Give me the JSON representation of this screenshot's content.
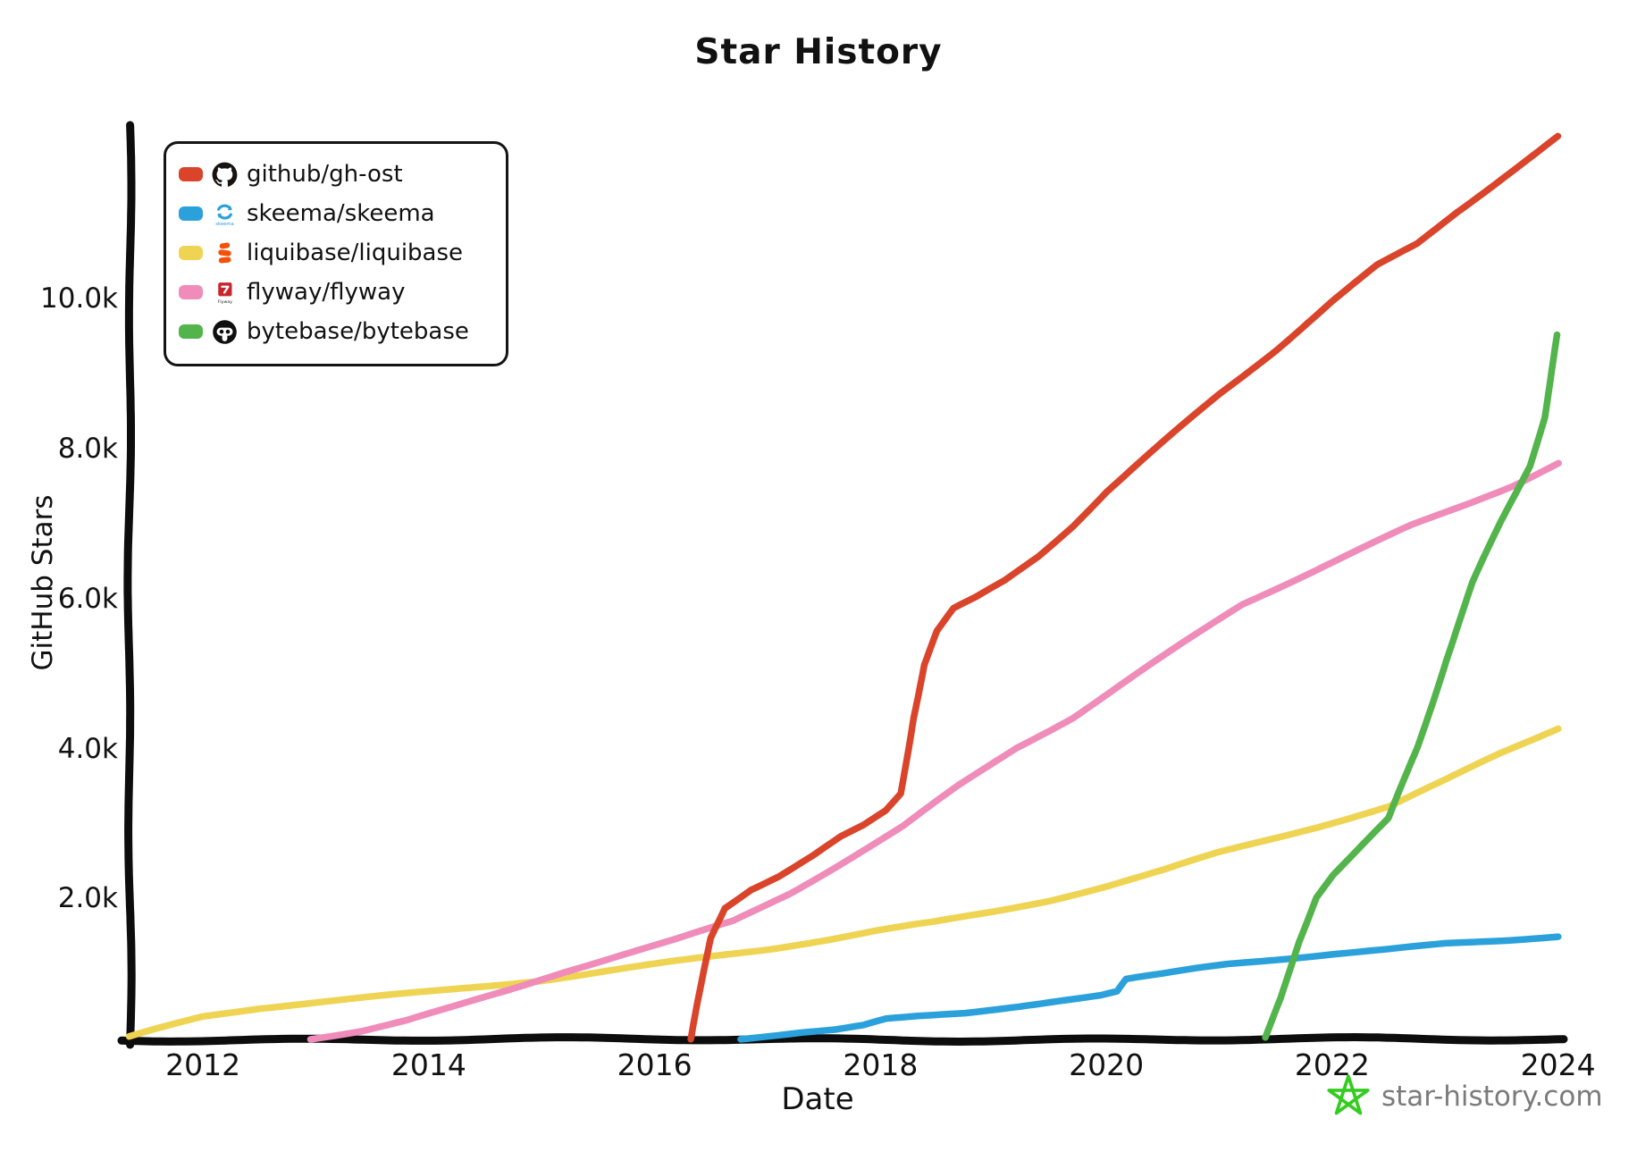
{
  "footer": {
    "site": "star-history.com",
    "star_color": "#33cc1f"
  },
  "chart_data": {
    "type": "line",
    "title": "Star History",
    "xlabel": "Date",
    "ylabel": "GitHub Stars",
    "x_unit": "year",
    "y_unit": "stars",
    "xlim": [
      2011.35,
      2024.05
    ],
    "ylim": [
      0,
      12200
    ],
    "grid": false,
    "legend_position": "top-left",
    "axis_color": "#0d0d0d",
    "xticks": [
      {
        "v": 2012,
        "label": "2012"
      },
      {
        "v": 2014,
        "label": "2014"
      },
      {
        "v": 2016,
        "label": "2016"
      },
      {
        "v": 2018,
        "label": "2018"
      },
      {
        "v": 2020,
        "label": "2020"
      },
      {
        "v": 2022,
        "label": "2022"
      },
      {
        "v": 2024,
        "label": "2024"
      }
    ],
    "yticks": [
      {
        "v": 2000,
        "label": "2.0k"
      },
      {
        "v": 4000,
        "label": "4.0k"
      },
      {
        "v": 6000,
        "label": "6.0k"
      },
      {
        "v": 8000,
        "label": "8.0k"
      },
      {
        "v": 10000,
        "label": "10.0k"
      }
    ],
    "series": [
      {
        "id": "gh-ost",
        "name": "github/gh-ost",
        "color": "#d9442b",
        "icon": "github-icon",
        "points": [
          [
            2016.33,
            0
          ],
          [
            2016.42,
            700
          ],
          [
            2016.5,
            1350
          ],
          [
            2016.62,
            1750
          ],
          [
            2016.85,
            2000
          ],
          [
            2017.1,
            2180
          ],
          [
            2017.4,
            2450
          ],
          [
            2017.65,
            2700
          ],
          [
            2017.85,
            2850
          ],
          [
            2018.05,
            3050
          ],
          [
            2018.18,
            3280
          ],
          [
            2018.28,
            4300
          ],
          [
            2018.38,
            5000
          ],
          [
            2018.5,
            5450
          ],
          [
            2018.65,
            5750
          ],
          [
            2018.85,
            5900
          ],
          [
            2019.1,
            6120
          ],
          [
            2019.4,
            6450
          ],
          [
            2019.7,
            6850
          ],
          [
            2020.0,
            7300
          ],
          [
            2020.5,
            7950
          ],
          [
            2021.0,
            8600
          ],
          [
            2021.5,
            9200
          ],
          [
            2022.0,
            9850
          ],
          [
            2022.4,
            10330
          ],
          [
            2022.75,
            10620
          ],
          [
            2023.1,
            11050
          ],
          [
            2023.5,
            11500
          ],
          [
            2024.0,
            12050
          ]
        ]
      },
      {
        "id": "skeema",
        "name": "skeema/skeema",
        "color": "#2ba1db",
        "icon": "skeema-icon",
        "points": [
          [
            2016.76,
            20
          ],
          [
            2017.0,
            60
          ],
          [
            2017.3,
            110
          ],
          [
            2017.6,
            140
          ],
          [
            2017.85,
            190
          ],
          [
            2018.05,
            270
          ],
          [
            2018.4,
            310
          ],
          [
            2018.75,
            350
          ],
          [
            2019.1,
            420
          ],
          [
            2019.5,
            500
          ],
          [
            2019.95,
            580
          ],
          [
            2020.1,
            630
          ],
          [
            2020.18,
            790
          ],
          [
            2020.5,
            860
          ],
          [
            2020.8,
            940
          ],
          [
            2021.1,
            1010
          ],
          [
            2021.5,
            1070
          ],
          [
            2022.0,
            1140
          ],
          [
            2022.5,
            1200
          ],
          [
            2023.0,
            1280
          ],
          [
            2023.5,
            1330
          ],
          [
            2024.0,
            1390
          ]
        ]
      },
      {
        "id": "liquibase",
        "name": "liquibase/liquibase",
        "color": "#efd453",
        "icon": "liquibase-icon",
        "points": [
          [
            2011.35,
            20
          ],
          [
            2011.6,
            130
          ],
          [
            2012.0,
            300
          ],
          [
            2012.5,
            420
          ],
          [
            2013.0,
            500
          ],
          [
            2013.5,
            570
          ],
          [
            2014.0,
            640
          ],
          [
            2014.5,
            720
          ],
          [
            2015.0,
            800
          ],
          [
            2015.5,
            900
          ],
          [
            2016.0,
            1000
          ],
          [
            2016.5,
            1100
          ],
          [
            2017.0,
            1200
          ],
          [
            2017.5,
            1320
          ],
          [
            2018.0,
            1450
          ],
          [
            2018.5,
            1560
          ],
          [
            2019.0,
            1700
          ],
          [
            2019.5,
            1860
          ],
          [
            2020.0,
            2050
          ],
          [
            2020.5,
            2260
          ],
          [
            2021.0,
            2500
          ],
          [
            2021.5,
            2700
          ],
          [
            2022.0,
            2900
          ],
          [
            2022.5,
            3110
          ],
          [
            2023.0,
            3450
          ],
          [
            2023.5,
            3820
          ],
          [
            2024.0,
            4150
          ]
        ]
      },
      {
        "id": "flyway",
        "name": "flyway/flyway",
        "color": "#ef8cba",
        "icon": "flyway-icon",
        "points": [
          [
            2012.95,
            20
          ],
          [
            2013.4,
            120
          ],
          [
            2013.8,
            250
          ],
          [
            2014.2,
            420
          ],
          [
            2014.7,
            650
          ],
          [
            2015.2,
            900
          ],
          [
            2015.7,
            1120
          ],
          [
            2016.2,
            1330
          ],
          [
            2016.7,
            1570
          ],
          [
            2017.2,
            1950
          ],
          [
            2017.7,
            2400
          ],
          [
            2018.2,
            2850
          ],
          [
            2018.7,
            3400
          ],
          [
            2019.2,
            3900
          ],
          [
            2019.7,
            4300
          ],
          [
            2020.2,
            4800
          ],
          [
            2020.7,
            5300
          ],
          [
            2021.2,
            5800
          ],
          [
            2021.7,
            6150
          ],
          [
            2022.2,
            6500
          ],
          [
            2022.7,
            6850
          ],
          [
            2023.2,
            7150
          ],
          [
            2023.6,
            7400
          ],
          [
            2024.0,
            7700
          ]
        ]
      },
      {
        "id": "bytebase",
        "name": "bytebase/bytebase",
        "color": "#52b44b",
        "icon": "bytebase-icon",
        "points": [
          [
            2021.42,
            20
          ],
          [
            2021.55,
            550
          ],
          [
            2021.7,
            1300
          ],
          [
            2021.85,
            1900
          ],
          [
            2022.0,
            2200
          ],
          [
            2022.2,
            2500
          ],
          [
            2022.5,
            2950
          ],
          [
            2022.75,
            3900
          ],
          [
            2023.0,
            5050
          ],
          [
            2023.25,
            6100
          ],
          [
            2023.5,
            6900
          ],
          [
            2023.75,
            7650
          ],
          [
            2023.88,
            8300
          ],
          [
            2024.0,
            9400
          ]
        ]
      }
    ]
  }
}
